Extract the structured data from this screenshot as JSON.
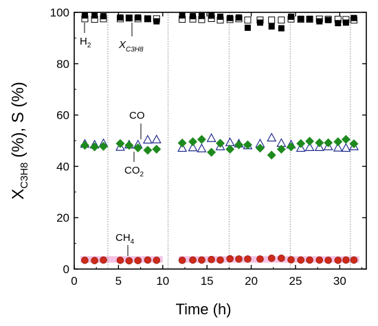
{
  "chart_data": {
    "type": "scatter",
    "xlabel": "Time (h)",
    "ylabel": {
      "base": "X",
      "sub": "C3H8",
      "rest": " (%), S (%)"
    },
    "xlim": [
      0,
      33
    ],
    "ylim": [
      0,
      100
    ],
    "xticks": [
      0,
      5,
      10,
      15,
      20,
      25,
      30
    ],
    "yticks": [
      0,
      20,
      40,
      60,
      80,
      100
    ],
    "vlines": [
      3.8,
      10.6,
      17.5,
      24.4,
      31.2
    ],
    "grid": false,
    "legend": "none",
    "colors": {
      "x_c3h8": "#000000",
      "h2": "#000000",
      "co": "#1f2a8a",
      "co2": "#1e8a1e",
      "ch4": "#cc2a1a",
      "ch4_band": "#f0a8d8"
    },
    "x": [
      1.2,
      2.3,
      3.3,
      5.2,
      6.2,
      7.2,
      8.3,
      9.3,
      12.2,
      13.4,
      14.4,
      15.5,
      16.5,
      17.6,
      18.6,
      19.6,
      21.0,
      22.3,
      23.4,
      24.5,
      25.6,
      26.6,
      27.7,
      28.7,
      29.8,
      30.7,
      31.6
    ],
    "series": [
      {
        "key": "x_c3h8",
        "label": "X",
        "label_sub": "C3H8",
        "marker": "square-filled",
        "values": [
          98.8,
          98.8,
          98.5,
          98.0,
          97.8,
          98.0,
          97.6,
          96.5,
          98.8,
          98.5,
          98.6,
          98.7,
          98.3,
          97.8,
          98.0,
          94.0,
          96.0,
          94.5,
          93.8,
          98.3,
          97.5,
          97.5,
          96.5,
          97.0,
          95.8,
          96.0,
          97.8
        ]
      },
      {
        "key": "h2",
        "label": "H",
        "label_sub": "2",
        "marker": "square-open",
        "values": [
          97.5,
          97.3,
          97.5,
          97.5,
          97.8,
          97.5,
          97.5,
          97.5,
          97.3,
          97.4,
          97.2,
          97.6,
          97.0,
          97.2,
          97.5,
          97.0,
          97.0,
          97.0,
          97.0,
          97.4,
          97.3,
          97.3,
          97.4,
          97.3,
          97.3,
          97.2,
          97.0
        ]
      },
      {
        "key": "co",
        "label": "CO",
        "label_sub": "",
        "marker": "triangle-open",
        "values": [
          48.8,
          48.5,
          49.0,
          47.6,
          48.5,
          48.5,
          50.4,
          50.5,
          47.2,
          47.4,
          47.0,
          51.0,
          47.8,
          49.4,
          48.9,
          48.2,
          48.9,
          51.2,
          49.1,
          48.5,
          47.2,
          47.5,
          47.5,
          47.8,
          47.3,
          47.2,
          47.8
        ]
      },
      {
        "key": "co2",
        "label": "CO",
        "label_sub": "2",
        "marker": "diamond-filled",
        "values": [
          48.2,
          47.6,
          47.8,
          48.9,
          48.2,
          47.2,
          46.3,
          46.7,
          49.1,
          49.6,
          50.5,
          45.5,
          49.0,
          46.7,
          48.4,
          48.4,
          47.1,
          44.4,
          46.7,
          47.6,
          48.9,
          49.8,
          49.2,
          49.2,
          49.6,
          50.5,
          48.8
        ]
      },
      {
        "key": "ch4",
        "label": "CH",
        "label_sub": "4",
        "marker": "circle-filled",
        "values": [
          3.4,
          3.3,
          3.5,
          3.4,
          3.2,
          3.3,
          3.5,
          3.4,
          3.4,
          3.5,
          3.5,
          3.7,
          3.5,
          4.0,
          3.9,
          3.9,
          3.9,
          4.2,
          4.2,
          3.6,
          3.5,
          3.5,
          3.5,
          3.4,
          3.4,
          3.5,
          3.5
        ]
      }
    ],
    "ch4_band": {
      "segments": [
        [
          0.7,
          10.0
        ],
        [
          11.8,
          32.2
        ]
      ],
      "y": [
        2.5,
        5.0
      ]
    }
  }
}
